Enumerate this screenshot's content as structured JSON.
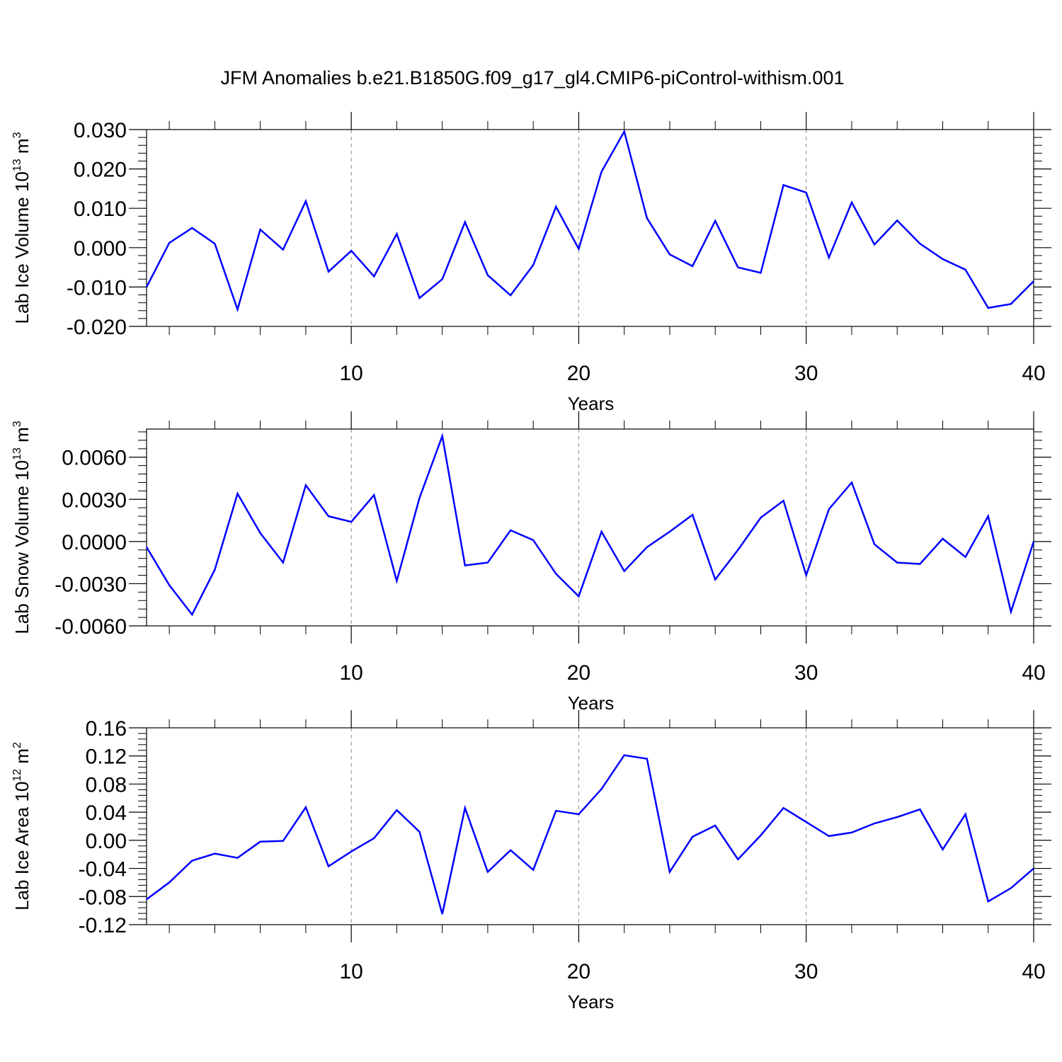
{
  "title": "JFM Anomalies b.e21.B1850G.f09_g17_gl4.CMIP6-piControl-withism.001",
  "line_color": "#0000ff",
  "chart_data": [
    {
      "type": "line",
      "xlabel": "Years",
      "ylabel": {
        "text": "Lab Ice Volume 10",
        "exp": "13",
        "unit": " m",
        "unit_exp": "3"
      },
      "xlim": [
        1,
        40
      ],
      "ylim": [
        -0.02,
        0.03
      ],
      "yticks": [
        -0.02,
        -0.01,
        0.0,
        0.01,
        0.02,
        0.03
      ],
      "ytick_labels": [
        "-0.020",
        "-0.010",
        "0.000",
        "0.010",
        "0.020",
        "0.030"
      ],
      "xticks": [
        10,
        20,
        30,
        40
      ],
      "xtick_labels": [
        "10",
        "20",
        "30",
        "40"
      ],
      "series": [
        {
          "x": [
            1,
            2,
            3,
            4,
            5,
            6,
            7,
            8,
            9,
            10,
            11,
            12,
            13,
            14,
            15,
            16,
            17,
            18,
            19,
            20,
            21,
            22,
            23,
            24,
            25,
            26,
            27,
            28,
            29,
            30,
            31,
            32,
            33,
            34,
            35,
            36,
            37,
            38,
            39,
            40
          ],
          "values": [
            -0.01,
            0.0012,
            0.005,
            0.001,
            -0.0157,
            0.0046,
            -0.0005,
            0.0118,
            -0.0061,
            -0.0008,
            -0.0073,
            0.0035,
            -0.0128,
            -0.008,
            0.0065,
            -0.007,
            -0.0121,
            -0.0044,
            0.0104,
            -0.0003,
            0.0193,
            0.0295,
            0.0075,
            -0.0017,
            -0.0047,
            0.0068,
            -0.005,
            -0.0064,
            0.0159,
            0.014,
            -0.0025,
            0.0115,
            0.0008,
            0.0069,
            0.001,
            -0.0029,
            -0.0056,
            -0.0153,
            -0.0143,
            -0.0085
          ]
        }
      ]
    },
    {
      "type": "line",
      "xlabel": "Years",
      "ylabel": {
        "text": "Lab Snow Volume 10",
        "exp": "13",
        "unit": " m",
        "unit_exp": "3"
      },
      "xlim": [
        1,
        40
      ],
      "ylim": [
        -0.006,
        0.008
      ],
      "yticks": [
        -0.006,
        -0.003,
        0.0,
        0.003,
        0.006
      ],
      "ytick_labels": [
        "-0.0060",
        "-0.0030",
        "0.0000",
        "0.0030",
        "0.0060"
      ],
      "xticks": [
        10,
        20,
        30,
        40
      ],
      "xtick_labels": [
        "10",
        "20",
        "30",
        "40"
      ],
      "series": [
        {
          "x": [
            1,
            2,
            3,
            4,
            5,
            6,
            7,
            8,
            9,
            10,
            11,
            12,
            13,
            14,
            15,
            16,
            17,
            18,
            19,
            20,
            21,
            22,
            23,
            24,
            25,
            26,
            27,
            28,
            29,
            30,
            31,
            32,
            33,
            34,
            35,
            36,
            37,
            38,
            39,
            40
          ],
          "values": [
            -0.0004,
            -0.0031,
            -0.0052,
            -0.002,
            0.0034,
            0.0006,
            -0.0015,
            0.004,
            0.0018,
            0.0014,
            0.0033,
            -0.0028,
            0.0031,
            0.0075,
            -0.0017,
            -0.0015,
            0.0008,
            0.0001,
            -0.0023,
            -0.0039,
            0.0007,
            -0.0021,
            -0.0004,
            0.0007,
            0.0019,
            -0.0027,
            -0.0006,
            0.0017,
            0.0029,
            -0.0024,
            0.0023,
            0.0042,
            -0.0002,
            -0.0015,
            -0.0016,
            0.0002,
            -0.0011,
            0.0018,
            -0.005,
            0.0
          ]
        }
      ]
    },
    {
      "type": "line",
      "xlabel": "Years",
      "ylabel": {
        "text": "Lab Ice Area 10",
        "exp": "12",
        "unit": " m",
        "unit_exp": "2"
      },
      "xlim": [
        1,
        40
      ],
      "ylim": [
        -0.12,
        0.16
      ],
      "yticks": [
        -0.12,
        -0.08,
        -0.04,
        0.0,
        0.04,
        0.08,
        0.12,
        0.16
      ],
      "ytick_labels": [
        "-0.12",
        "-0.08",
        "-0.04",
        "0.00",
        "0.04",
        "0.08",
        "0.12",
        "0.16"
      ],
      "xticks": [
        10,
        20,
        30,
        40
      ],
      "xtick_labels": [
        "10",
        "20",
        "30",
        "40"
      ],
      "series": [
        {
          "x": [
            1,
            2,
            3,
            4,
            5,
            6,
            7,
            8,
            9,
            10,
            11,
            12,
            13,
            14,
            15,
            16,
            17,
            18,
            19,
            20,
            21,
            22,
            23,
            24,
            25,
            26,
            27,
            28,
            29,
            30,
            31,
            32,
            33,
            34,
            35,
            36,
            37,
            38,
            39,
            40
          ],
          "values": [
            -0.084,
            -0.06,
            -0.029,
            -0.019,
            -0.025,
            -0.002,
            -0.001,
            0.047,
            -0.037,
            -0.016,
            0.003,
            0.043,
            0.012,
            -0.105,
            0.046,
            -0.045,
            -0.014,
            -0.042,
            0.042,
            0.037,
            0.073,
            0.121,
            0.116,
            -0.045,
            0.005,
            0.021,
            -0.027,
            0.007,
            0.046,
            0.026,
            0.006,
            0.011,
            0.024,
            0.033,
            0.044,
            -0.013,
            0.037,
            -0.087,
            -0.068,
            -0.04
          ]
        }
      ]
    }
  ]
}
